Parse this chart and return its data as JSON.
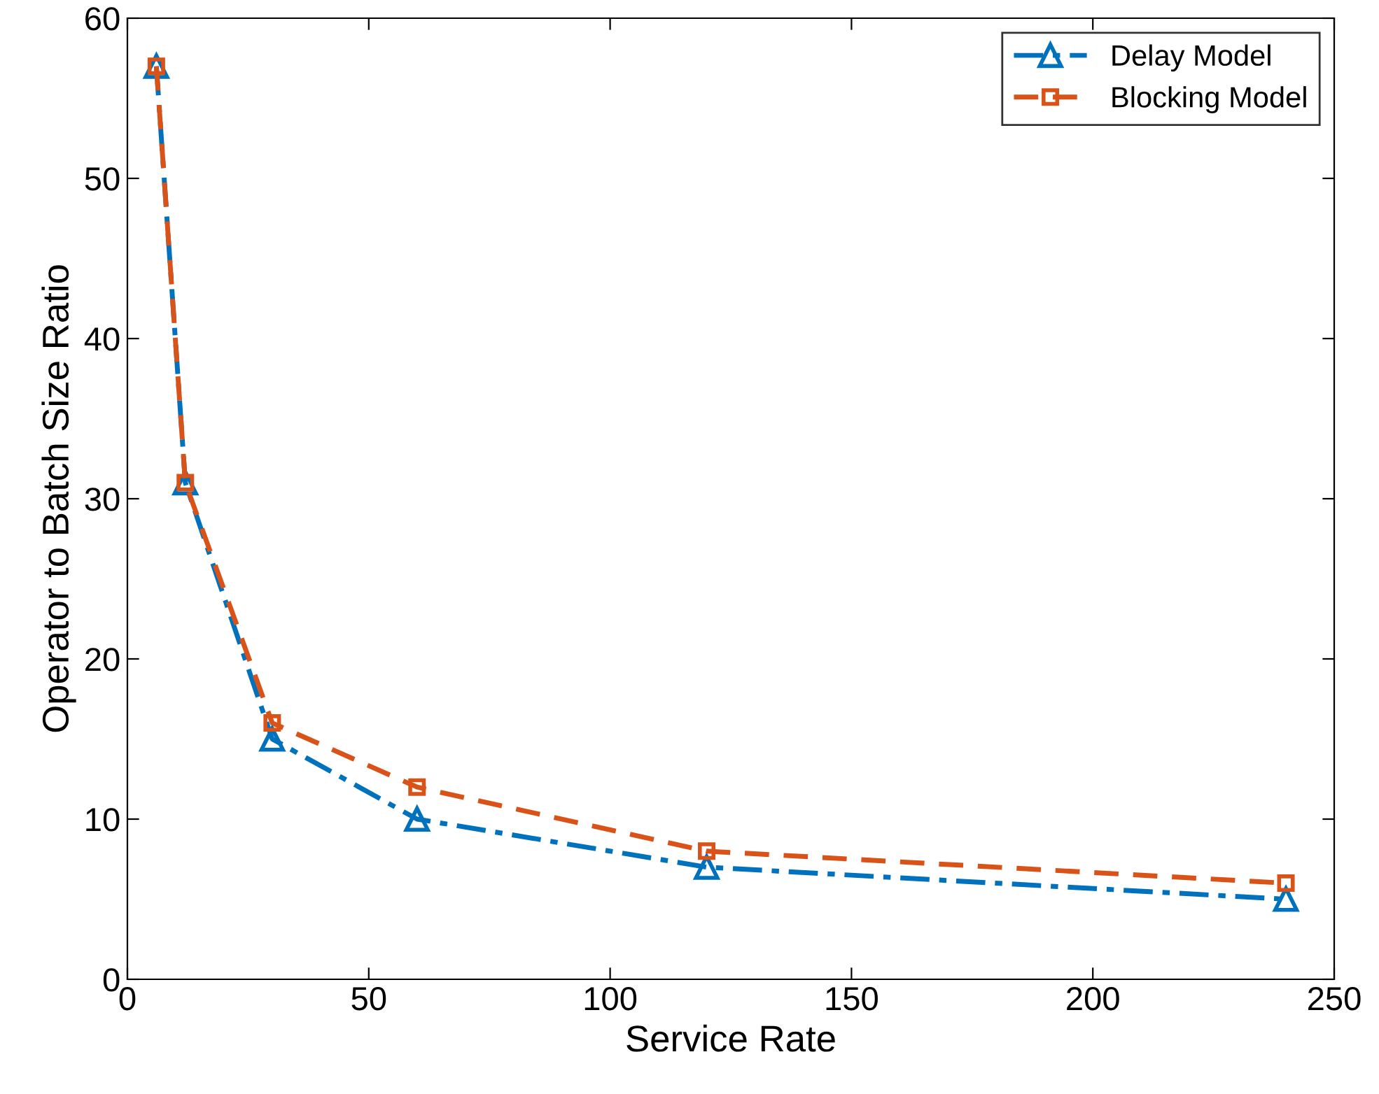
{
  "chart_data": {
    "type": "line",
    "xlabel": "Service Rate",
    "ylabel": "Operator to Batch Size Ratio",
    "x": [
      6,
      12,
      30,
      60,
      120,
      240
    ],
    "series": [
      {
        "name": "Delay Model",
        "color": "#0072bd",
        "values": [
          57,
          31,
          15,
          10,
          7,
          5
        ],
        "marker": "triangle",
        "line_style": "dashdot"
      },
      {
        "name": "Blocking Model",
        "color": "#d95319",
        "values": [
          57,
          31,
          16,
          12,
          8,
          6
        ],
        "marker": "square",
        "line_style": "dashed"
      }
    ],
    "xlim": [
      0,
      250
    ],
    "xticks": [
      0,
      50,
      100,
      150,
      200,
      250
    ],
    "ylim": [
      0,
      60
    ],
    "yticks": [
      0,
      10,
      20,
      30,
      40,
      50,
      60
    ],
    "grid": false,
    "legend": "top right"
  }
}
